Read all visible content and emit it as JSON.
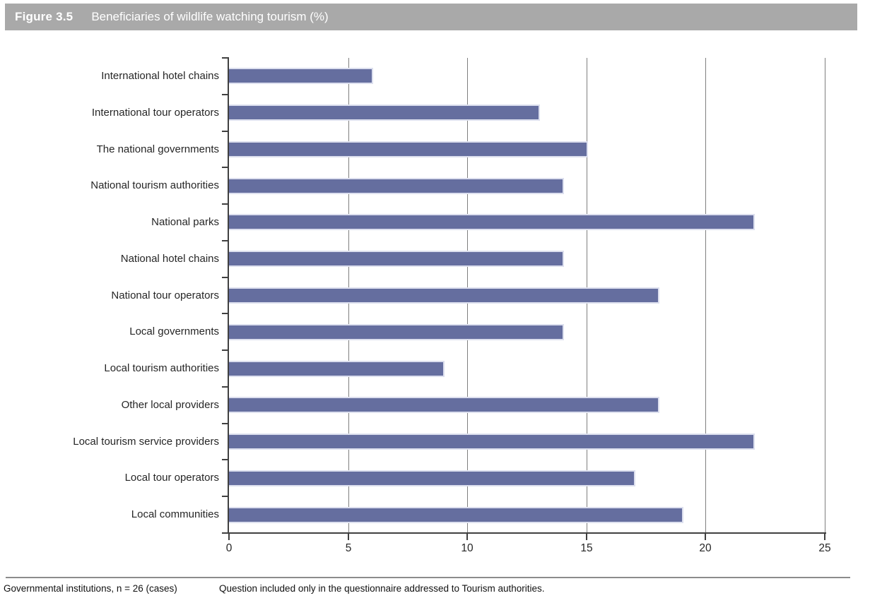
{
  "header": {
    "figure_label": "Figure 3.5",
    "title": "Beneficiaries of wildlife watching tourism (%)"
  },
  "chart_data": {
    "type": "bar",
    "orientation": "horizontal",
    "title": "Beneficiaries of wildlife watching tourism (%)",
    "categories": [
      "International hotel chains",
      "International tour operators",
      "The national governments",
      "National tourism authorities",
      "National parks",
      "National hotel chains",
      "National tour operators",
      "Local governments",
      "Local tourism authorities",
      "Other local providers",
      "Local tourism service providers",
      "Local tour operators",
      "Local communities"
    ],
    "values": [
      6,
      13,
      15,
      14,
      22,
      14,
      18,
      14,
      9,
      18,
      22,
      17,
      19
    ],
    "xlabel": "",
    "ylabel": "",
    "xlim": [
      0,
      25
    ],
    "x_ticks": [
      0,
      5,
      10,
      15,
      20,
      25
    ],
    "grid": true,
    "legend": false,
    "colors": {
      "bar_fill": "#656e9f",
      "bar_border": "#dcdfee",
      "gridline": "#7f7f7f",
      "axis": "#404040",
      "header_bg": "#a9a9a9",
      "header_text": "#ffffff"
    }
  },
  "footer": {
    "left_note": "Governmental institutions, n = 26 (cases)",
    "right_note": "Question included only in the questionnaire addressed to Tourism authorities."
  }
}
